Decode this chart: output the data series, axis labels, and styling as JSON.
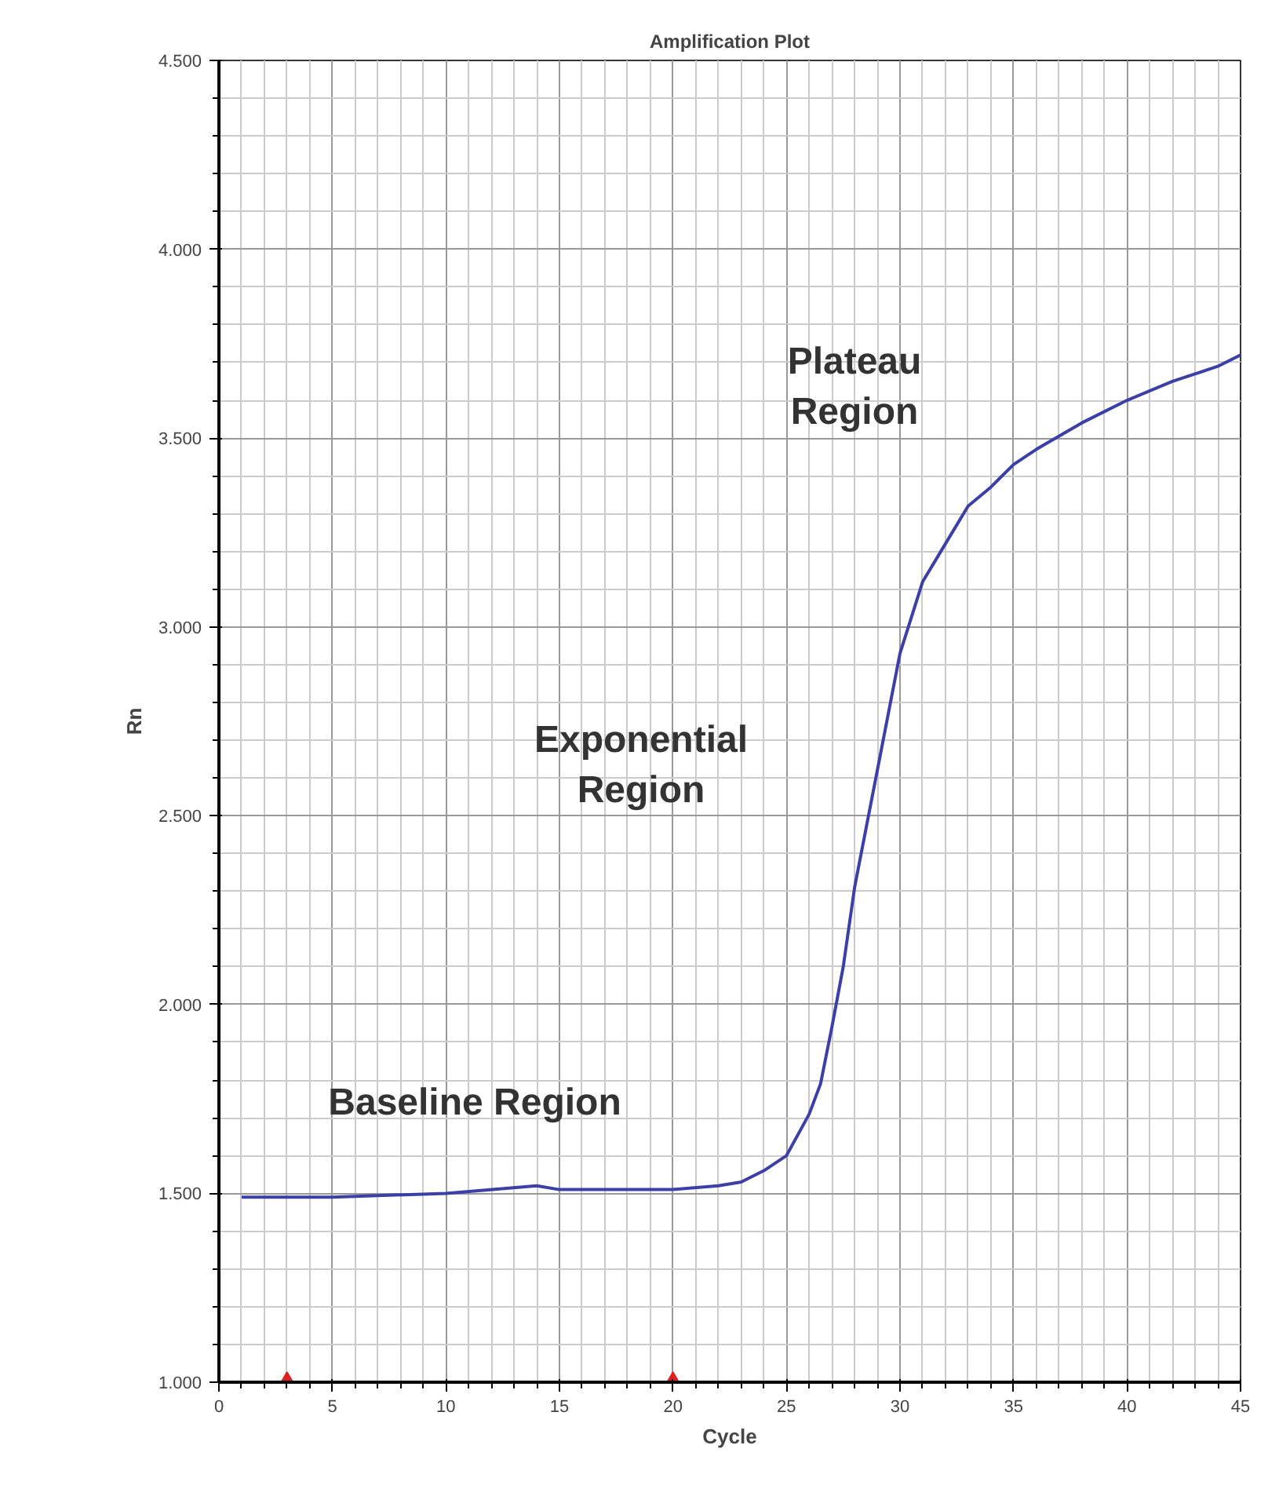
{
  "chart_data": {
    "type": "line",
    "title": "Amplification Plot",
    "xlabel": "Cycle",
    "ylabel": "Rn",
    "xlim": [
      0,
      45
    ],
    "ylim": [
      1000,
      4500
    ],
    "xticks": [
      0,
      5,
      10,
      15,
      20,
      25,
      30,
      35,
      40,
      45
    ],
    "yticks": [
      {
        "value": 1000,
        "label": "1.000"
      },
      {
        "value": 1500,
        "label": "1.500"
      },
      {
        "value": 2000,
        "label": "2.000"
      },
      {
        "value": 2500,
        "label": "2.500"
      },
      {
        "value": 3000,
        "label": "3.000"
      },
      {
        "value": 3500,
        "label": "3.500"
      },
      {
        "value": 4000,
        "label": "4.000"
      },
      {
        "value": 4500,
        "label": "4.500"
      }
    ],
    "grid": true,
    "series": [
      {
        "color": "#3b3fa8",
        "x": [
          1,
          5,
          10,
          14,
          15,
          20,
          22,
          23,
          24,
          25,
          26,
          26.5,
          27,
          27.5,
          28,
          29,
          30,
          31,
          32,
          33,
          34,
          35,
          36,
          38,
          40,
          42,
          44,
          45
        ],
        "values": [
          1490,
          1490,
          1500,
          1520,
          1510,
          1510,
          1520,
          1530,
          1560,
          1600,
          1710,
          1790,
          1940,
          2100,
          2310,
          2620,
          2930,
          3120,
          3220,
          3320,
          3370,
          3430,
          3470,
          3540,
          3600,
          3650,
          3690,
          3720
        ]
      },
      {
        "type": "scatter",
        "marker": "triangle",
        "color": "#e02020",
        "x": [
          3,
          20
        ],
        "values": [
          1000,
          1000
        ]
      }
    ],
    "annotations": [
      "Baseline Region",
      "Exponential Region",
      "Plateau Region"
    ]
  }
}
